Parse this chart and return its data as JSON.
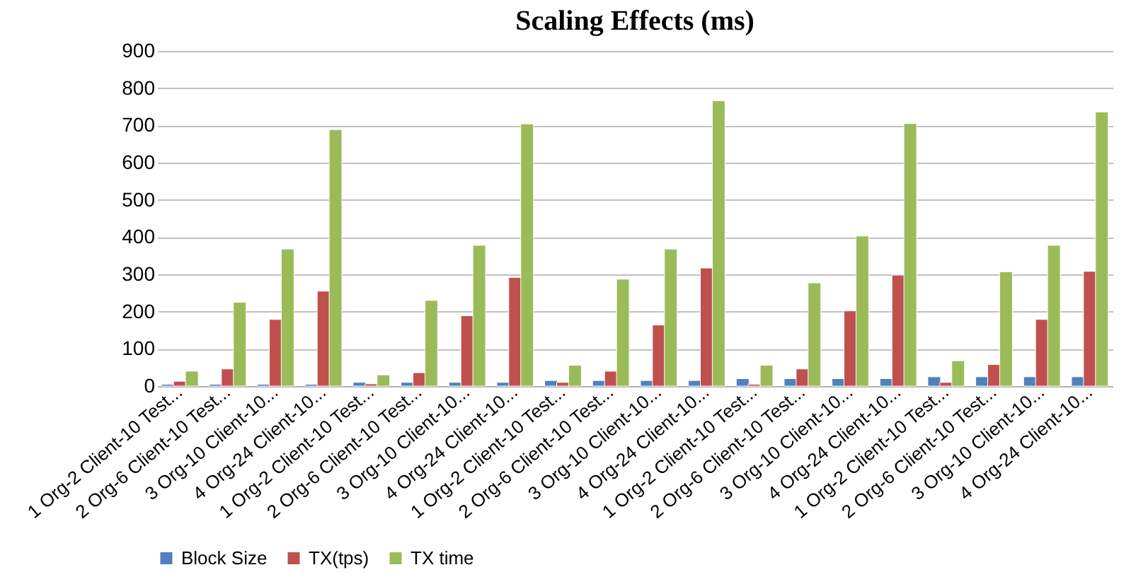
{
  "chart_data": {
    "type": "bar",
    "title": "Scaling Effects (ms)",
    "categories": [
      "1 Org-2 Client-10 Test...",
      "2 Org-6 Client-10 Test...",
      "3 Org-10 Client-10...",
      "4 Org-24 Client-10...",
      "1 Org-2 Client-10 Test...",
      "2 Org-6 Client-10 Test...",
      "3 Org-10 Client-10...",
      "4 Org-24 Client-10...",
      "1 Org-2 Client-10 Test...",
      "2 Org-6 Client-10 Test...",
      "3 Org-10 Client-10...",
      "4 Org-24 Client-10...",
      "1 Org-2 Client-10 Test...",
      "2 Org-6 Client-10 Test...",
      "3 Org-10 Client-10...",
      "4 Org-24 Client-10...",
      "1 Org-2 Client-10 Test...",
      "2 Org-6 Client-10 Test...",
      "3 Org-10 Client-10...",
      "4 Org-24 Client-10..."
    ],
    "series": [
      {
        "name": "Block Size",
        "color": "#4f81bd",
        "values": [
          5,
          5,
          5,
          5,
          10,
          10,
          10,
          10,
          15,
          15,
          15,
          15,
          20,
          20,
          20,
          20,
          25,
          25,
          25,
          25
        ]
      },
      {
        "name": "TX(tps)",
        "color": "#c0504d",
        "values": [
          13,
          46,
          179,
          255,
          6,
          36,
          189,
          292,
          10,
          40,
          164,
          317,
          5,
          46,
          202,
          298,
          10,
          58,
          179,
          308
        ]
      },
      {
        "name": "TX time",
        "color": "#9bbb59",
        "values": [
          40,
          225,
          368,
          689,
          30,
          230,
          378,
          704,
          56,
          287,
          368,
          766,
          56,
          277,
          403,
          705,
          68,
          307,
          378,
          736
        ]
      }
    ],
    "ylim": [
      0,
      900
    ],
    "yticks": [
      0,
      100,
      200,
      300,
      400,
      500,
      600,
      700,
      800,
      900
    ],
    "grid": "y",
    "legend": "bottom"
  }
}
